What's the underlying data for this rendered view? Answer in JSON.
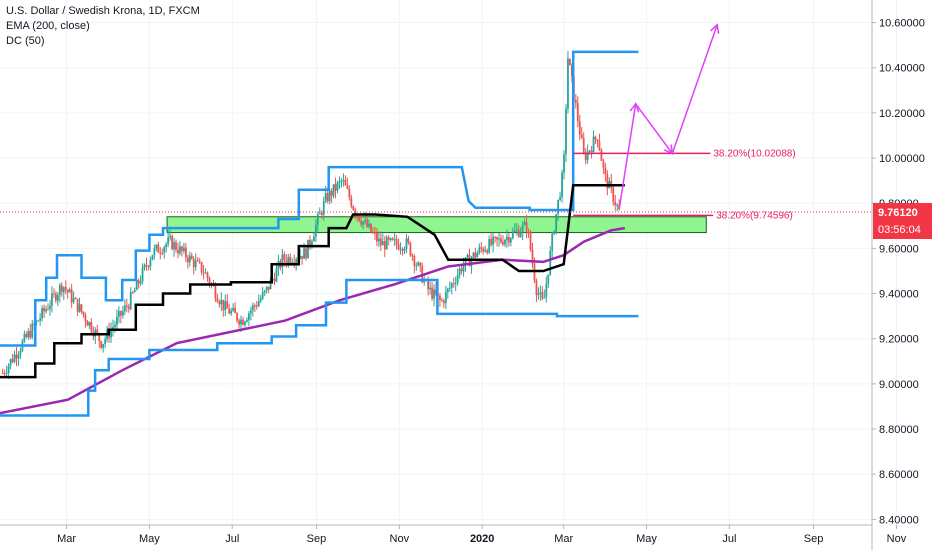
{
  "chart_data": {
    "type": "candlestick",
    "title": "U.S. Dollar / Swedish Krona, 1D, FXCM",
    "indicators": [
      "EMA (200, close)",
      "DC (50)"
    ],
    "y_ticks": [
      "10.60000",
      "10.40000",
      "10.20000",
      "10.00000",
      "9.80000",
      "9.60000",
      "9.40000",
      "9.20000",
      "9.00000",
      "8.80000",
      "8.60000",
      "8.40000"
    ],
    "y_tick_values": [
      10.6,
      10.4,
      10.2,
      10.0,
      9.8,
      9.6,
      9.4,
      9.2,
      9.0,
      8.8,
      8.6,
      8.4
    ],
    "ylim": [
      8.375,
      10.7
    ],
    "x_ticks": [
      "Mar",
      "May",
      "Jul",
      "Sep",
      "Nov",
      "2020",
      "Mar",
      "May",
      "Jul",
      "Sep",
      "Nov"
    ],
    "x_tick_days": [
      59,
      120,
      181,
      243,
      304,
      365,
      425,
      486,
      547,
      609,
      670
    ],
    "xlim_days": [
      10,
      652
    ],
    "x_unit": "days since 2019-01-01",
    "current_price": "9.76120",
    "countdown": "03:56:04",
    "current_price_value": 9.7612,
    "colors": {
      "up": "#26a69a",
      "down": "#ef5350",
      "donchian": "#2196f3",
      "basis": "#000000",
      "ema": "#9c27b0",
      "fib": "#e91e63",
      "arrow": "#e040fb",
      "zone_fill": "#7cf27c",
      "zone_border": "#1b5e20",
      "price_tag": "#f23645"
    },
    "ema": [
      [
        10,
        8.87
      ],
      [
        60,
        8.93
      ],
      [
        100,
        9.06
      ],
      [
        140,
        9.18
      ],
      [
        180,
        9.23
      ],
      [
        220,
        9.28
      ],
      [
        260,
        9.37
      ],
      [
        300,
        9.44
      ],
      [
        340,
        9.52
      ],
      [
        380,
        9.55
      ],
      [
        410,
        9.54
      ],
      [
        425,
        9.57
      ],
      [
        440,
        9.63
      ],
      [
        460,
        9.68
      ],
      [
        470,
        9.69
      ]
    ],
    "donchian_upper": [
      [
        10,
        9.17
      ],
      [
        36,
        9.17
      ],
      [
        36,
        9.37
      ],
      [
        44,
        9.37
      ],
      [
        44,
        9.47
      ],
      [
        52,
        9.47
      ],
      [
        52,
        9.57
      ],
      [
        70,
        9.57
      ],
      [
        70,
        9.47
      ],
      [
        88,
        9.47
      ],
      [
        88,
        9.37
      ],
      [
        100,
        9.37
      ],
      [
        100,
        9.46
      ],
      [
        110,
        9.46
      ],
      [
        110,
        9.59
      ],
      [
        120,
        9.59
      ],
      [
        120,
        9.66
      ],
      [
        130,
        9.66
      ],
      [
        130,
        9.69
      ],
      [
        215,
        9.69
      ],
      [
        215,
        9.73
      ],
      [
        230,
        9.73
      ],
      [
        230,
        9.86
      ],
      [
        252,
        9.86
      ],
      [
        252,
        9.96
      ],
      [
        350,
        9.96
      ],
      [
        355,
        9.81
      ],
      [
        360,
        9.78
      ],
      [
        400,
        9.78
      ],
      [
        400,
        9.77
      ],
      [
        432,
        9.77
      ],
      [
        432,
        10.47
      ],
      [
        480,
        10.47
      ]
    ],
    "donchian_lower": [
      [
        10,
        8.86
      ],
      [
        75,
        8.86
      ],
      [
        75,
        8.97
      ],
      [
        80,
        8.97
      ],
      [
        80,
        9.06
      ],
      [
        90,
        9.06
      ],
      [
        90,
        9.11
      ],
      [
        120,
        9.11
      ],
      [
        120,
        9.15
      ],
      [
        170,
        9.15
      ],
      [
        170,
        9.18
      ],
      [
        210,
        9.18
      ],
      [
        210,
        9.21
      ],
      [
        228,
        9.21
      ],
      [
        228,
        9.26
      ],
      [
        250,
        9.26
      ],
      [
        250,
        9.36
      ],
      [
        265,
        9.36
      ],
      [
        265,
        9.46
      ],
      [
        332,
        9.46
      ],
      [
        332,
        9.31
      ],
      [
        420,
        9.31
      ],
      [
        420,
        9.3
      ],
      [
        480,
        9.3
      ]
    ],
    "donchian_basis": [
      [
        10,
        9.03
      ],
      [
        36,
        9.03
      ],
      [
        36,
        9.09
      ],
      [
        50,
        9.09
      ],
      [
        50,
        9.18
      ],
      [
        70,
        9.18
      ],
      [
        70,
        9.22
      ],
      [
        90,
        9.22
      ],
      [
        90,
        9.24
      ],
      [
        110,
        9.24
      ],
      [
        110,
        9.35
      ],
      [
        130,
        9.35
      ],
      [
        130,
        9.4
      ],
      [
        150,
        9.4
      ],
      [
        150,
        9.44
      ],
      [
        180,
        9.44
      ],
      [
        180,
        9.45
      ],
      [
        210,
        9.45
      ],
      [
        210,
        9.53
      ],
      [
        230,
        9.53
      ],
      [
        230,
        9.61
      ],
      [
        252,
        9.61
      ],
      [
        252,
        9.69
      ],
      [
        265,
        9.69
      ],
      [
        270,
        9.75
      ],
      [
        286,
        9.75
      ],
      [
        310,
        9.74
      ],
      [
        330,
        9.66
      ],
      [
        340,
        9.55
      ],
      [
        380,
        9.55
      ],
      [
        392,
        9.5
      ],
      [
        410,
        9.5
      ],
      [
        425,
        9.53
      ],
      [
        432,
        9.88
      ],
      [
        470,
        9.88
      ]
    ],
    "support_zone": {
      "x0": 133,
      "x1": 530,
      "y_low": 9.67,
      "y_high": 9.74
    },
    "fib_levels": [
      {
        "label": "38.20%(10.02088)",
        "value": 10.02088,
        "x0": 432,
        "x1": 533
      },
      {
        "label": "38.20%(9.74596)",
        "value": 9.74596,
        "x0": 432,
        "x1": 535
      }
    ],
    "projection": [
      [
        466,
        9.78
      ],
      [
        478,
        10.24
      ],
      [
        505,
        10.02
      ],
      [
        538,
        10.59
      ]
    ],
    "candles_ohlc": []
  }
}
